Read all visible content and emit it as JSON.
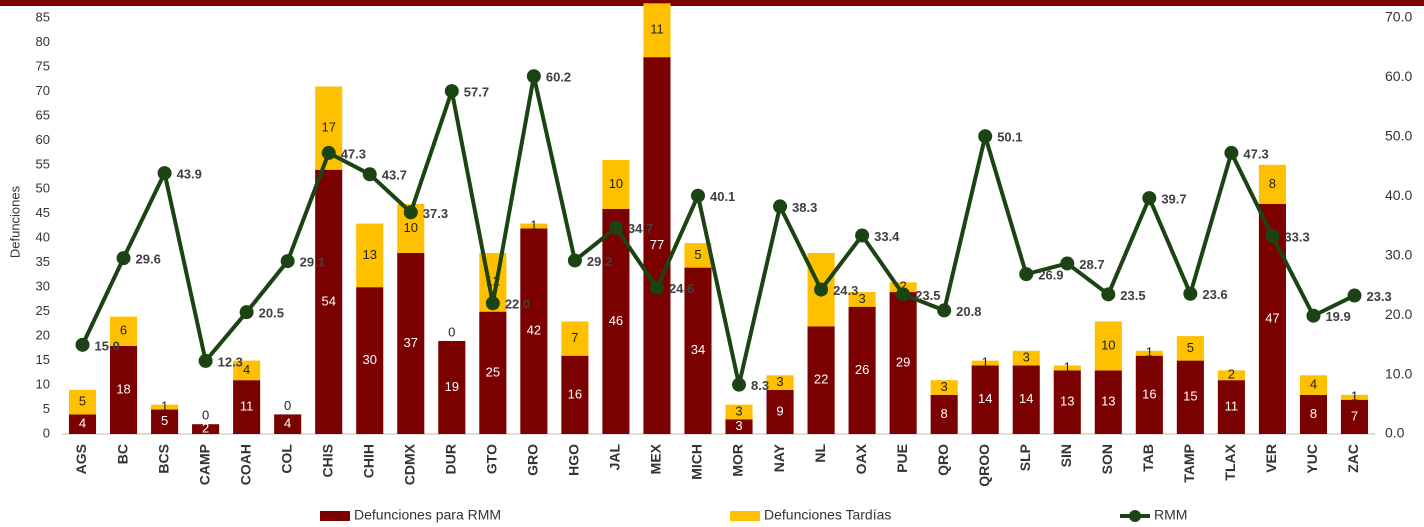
{
  "chart_data": {
    "type": "bar",
    "stacked": true,
    "y_axis_label": "Defunciones",
    "categories": [
      "AGS",
      "BC",
      "BCS",
      "CAMP",
      "COAH",
      "COL",
      "CHIS",
      "CHIH",
      "CDMX",
      "DUR",
      "GTO",
      "GRO",
      "HGO",
      "JAL",
      "MEX",
      "MICH",
      "MOR",
      "NAY",
      "NL",
      "OAX",
      "PUE",
      "QRO",
      "QROO",
      "SLP",
      "SIN",
      "SON",
      "TAB",
      "TAMP",
      "TLAX",
      "VER",
      "YUC",
      "ZAC"
    ],
    "series": [
      {
        "name": "Defunciones para RMM",
        "type": "bar",
        "color": "#7b0000",
        "values": [
          4,
          18,
          5,
          2,
          11,
          4,
          54,
          30,
          37,
          19,
          25,
          42,
          16,
          46,
          77,
          34,
          3,
          9,
          22,
          26,
          29,
          8,
          14,
          14,
          13,
          13,
          16,
          15,
          11,
          47,
          8,
          7
        ]
      },
      {
        "name": "Defunciones Tardías",
        "type": "bar",
        "color": "#ffc000",
        "values": [
          5,
          6,
          1,
          0,
          4,
          0,
          17,
          13,
          10,
          0,
          12,
          1,
          7,
          10,
          11,
          5,
          3,
          3,
          15,
          3,
          2,
          3,
          1,
          3,
          1,
          10,
          1,
          5,
          2,
          8,
          4,
          1
        ]
      },
      {
        "name": "RMM",
        "type": "line",
        "axis": "y2",
        "color": "#1b4314",
        "values": [
          15.0,
          29.6,
          43.9,
          12.3,
          20.5,
          29.1,
          47.3,
          43.7,
          37.3,
          57.7,
          22.0,
          60.2,
          29.2,
          34.7,
          24.6,
          40.1,
          8.3,
          38.3,
          24.3,
          33.4,
          23.5,
          20.8,
          50.1,
          26.9,
          28.7,
          23.5,
          39.7,
          23.6,
          47.3,
          33.3,
          19.9,
          23.3
        ],
        "value_labels": [
          "15.0",
          "29.6",
          "43.9",
          "12.3",
          "20.5",
          "29.1",
          "47.3",
          "43.7",
          "37.3",
          "57.7",
          "22.0",
          "60.2",
          "29.2",
          "34.7",
          "24.6",
          "40.1",
          "8.3",
          "38.3",
          "24.3",
          "33.4",
          "23.5",
          "20.8",
          "50.1",
          "26.9",
          "28.7",
          "23.5",
          "39.7",
          "23.6",
          "47.3",
          "33.3",
          "19.9",
          "23.3"
        ]
      }
    ],
    "ylim": [
      0,
      85
    ],
    "yticks": [
      0,
      5,
      10,
      15,
      20,
      25,
      30,
      35,
      40,
      45,
      50,
      55,
      60,
      65,
      70,
      75,
      80,
      85
    ],
    "y2lim": [
      0,
      70
    ],
    "y2ticks": [
      {
        "value": 0,
        "label": "0.0"
      },
      {
        "value": 10,
        "label": "10.0"
      },
      {
        "value": 20,
        "label": "20.0"
      },
      {
        "value": 30,
        "label": "30.0"
      },
      {
        "value": 40,
        "label": "40.0"
      },
      {
        "value": 50,
        "label": "50.0"
      },
      {
        "value": 60,
        "label": "60.0"
      },
      {
        "value": 70,
        "label": "70.0"
      }
    ],
    "grid": false,
    "legend": "bottom"
  }
}
